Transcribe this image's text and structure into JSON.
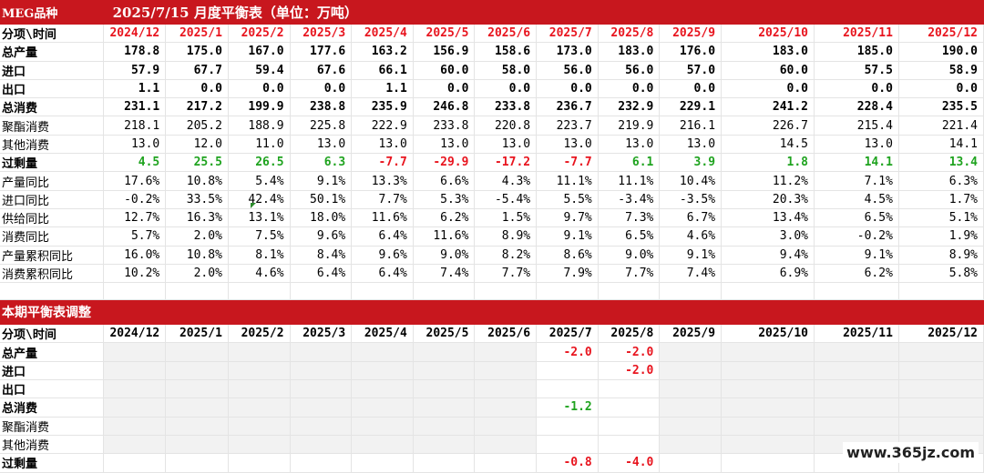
{
  "banner": {
    "product": "MEG品种",
    "title": "2025/7/15 月度平衡表（单位：万吨）"
  },
  "header_label": "分项\\时间",
  "months": [
    "2024/12",
    "2025/1",
    "2025/2",
    "2025/3",
    "2025/4",
    "2025/5",
    "2025/6",
    "2025/7",
    "2025/8",
    "2025/9",
    "2025/10",
    "2025/11",
    "2025/12"
  ],
  "balance_rows": [
    {
      "label": "总产量",
      "bold": true,
      "values": [
        "178.8",
        "175.0",
        "167.0",
        "177.6",
        "163.2",
        "156.9",
        "158.6",
        "173.0",
        "183.0",
        "176.0",
        "183.0",
        "185.0",
        "190.0"
      ]
    },
    {
      "label": "进口",
      "bold": true,
      "values": [
        "57.9",
        "67.7",
        "59.4",
        "67.6",
        "66.1",
        "60.0",
        "58.0",
        "56.0",
        "56.0",
        "57.0",
        "60.0",
        "57.5",
        "58.9"
      ]
    },
    {
      "label": "出口",
      "bold": true,
      "values": [
        "1.1",
        "0.0",
        "0.0",
        "0.0",
        "1.1",
        "0.0",
        "0.0",
        "0.0",
        "0.0",
        "0.0",
        "0.0",
        "0.0",
        "0.0"
      ]
    },
    {
      "label": "总消费",
      "bold": true,
      "values": [
        "231.1",
        "217.2",
        "199.9",
        "238.8",
        "235.9",
        "246.8",
        "233.8",
        "236.7",
        "232.9",
        "229.1",
        "241.2",
        "228.4",
        "235.5"
      ]
    },
    {
      "label": "聚酯消费",
      "bold": false,
      "values": [
        "218.1",
        "205.2",
        "188.9",
        "225.8",
        "222.9",
        "233.8",
        "220.8",
        "223.7",
        "219.9",
        "216.1",
        "226.7",
        "215.4",
        "221.4"
      ]
    },
    {
      "label": "其他消费",
      "bold": false,
      "values": [
        "13.0",
        "12.0",
        "11.0",
        "13.0",
        "13.0",
        "13.0",
        "13.0",
        "13.0",
        "13.0",
        "13.0",
        "14.5",
        "13.0",
        "14.1"
      ]
    },
    {
      "label": "过剩量",
      "bold": true,
      "colored": true,
      "values": [
        "4.5",
        "25.5",
        "26.5",
        "6.3",
        "-7.7",
        "-29.9",
        "-17.2",
        "-7.7",
        "6.1",
        "3.9",
        "1.8",
        "14.1",
        "13.4"
      ]
    },
    {
      "label": "产量同比",
      "bold": false,
      "values": [
        "17.6%",
        "10.8%",
        "5.4%",
        "9.1%",
        "13.3%",
        "6.6%",
        "4.3%",
        "11.1%",
        "11.1%",
        "10.4%",
        "11.2%",
        "7.1%",
        "6.3%"
      ]
    },
    {
      "label": "进口同比",
      "bold": false,
      "values": [
        "-0.2%",
        "33.5%",
        "42.4%",
        "50.1%",
        "7.7%",
        "5.3%",
        "-5.4%",
        "5.5%",
        "-3.4%",
        "-3.5%",
        "20.3%",
        "4.5%",
        "1.7%"
      ]
    },
    {
      "label": "供给同比",
      "bold": false,
      "values": [
        "12.7%",
        "16.3%",
        "13.1%",
        "18.0%",
        "11.6%",
        "6.2%",
        "1.5%",
        "9.7%",
        "7.3%",
        "6.7%",
        "13.4%",
        "6.5%",
        "5.1%"
      ]
    },
    {
      "label": "消费同比",
      "bold": false,
      "values": [
        "5.7%",
        "2.0%",
        "7.5%",
        "9.6%",
        "6.4%",
        "11.6%",
        "8.9%",
        "9.1%",
        "6.5%",
        "4.6%",
        "3.0%",
        "-0.2%",
        "1.9%"
      ]
    },
    {
      "label": "产量累积同比",
      "bold": false,
      "values": [
        "16.0%",
        "10.8%",
        "8.1%",
        "8.4%",
        "9.6%",
        "9.0%",
        "8.2%",
        "8.6%",
        "9.0%",
        "9.1%",
        "9.4%",
        "9.1%",
        "8.9%"
      ]
    },
    {
      "label": "消费累积同比",
      "bold": false,
      "values": [
        "10.2%",
        "2.0%",
        "4.6%",
        "6.4%",
        "6.4%",
        "7.4%",
        "7.7%",
        "7.9%",
        "7.7%",
        "7.4%",
        "6.9%",
        "6.2%",
        "5.8%"
      ]
    }
  ],
  "adjust_banner": "本期平衡表调整",
  "adjust_rows": [
    {
      "label": "总产量",
      "bold": true,
      "values": [
        "",
        "",
        "",
        "",
        "",
        "",
        "",
        "-2.0",
        "-2.0",
        "",
        "",
        "",
        ""
      ]
    },
    {
      "label": "进口",
      "bold": true,
      "values": [
        "",
        "",
        "",
        "",
        "",
        "",
        "",
        "",
        "-2.0",
        "",
        "",
        "",
        ""
      ]
    },
    {
      "label": "出口",
      "bold": true,
      "values": [
        "",
        "",
        "",
        "",
        "",
        "",
        "",
        "",
        "",
        "",
        "",
        "",
        ""
      ]
    },
    {
      "label": "总消费",
      "bold": true,
      "values": [
        "",
        "",
        "",
        "",
        "",
        "",
        "",
        "-1.2",
        "",
        "",
        "",
        "",
        ""
      ]
    },
    {
      "label": "聚酯消费",
      "bold": false,
      "values": [
        "",
        "",
        "",
        "",
        "",
        "",
        "",
        "",
        "",
        "",
        "",
        "",
        ""
      ]
    },
    {
      "label": "其他消费",
      "bold": false,
      "values": [
        "",
        "",
        "",
        "",
        "",
        "",
        "",
        "",
        "",
        "",
        "",
        "",
        ""
      ]
    },
    {
      "label": "过剩量",
      "bold": true,
      "values": [
        "",
        "",
        "",
        "",
        "",
        "",
        "",
        "-0.8",
        "-4.0",
        "",
        "",
        "",
        ""
      ]
    }
  ],
  "watermark": "www.365jz.com",
  "colors": {
    "banner_red": "#c8171e",
    "positive_green": "#1fa31f",
    "negative_red": "#e8141e"
  }
}
